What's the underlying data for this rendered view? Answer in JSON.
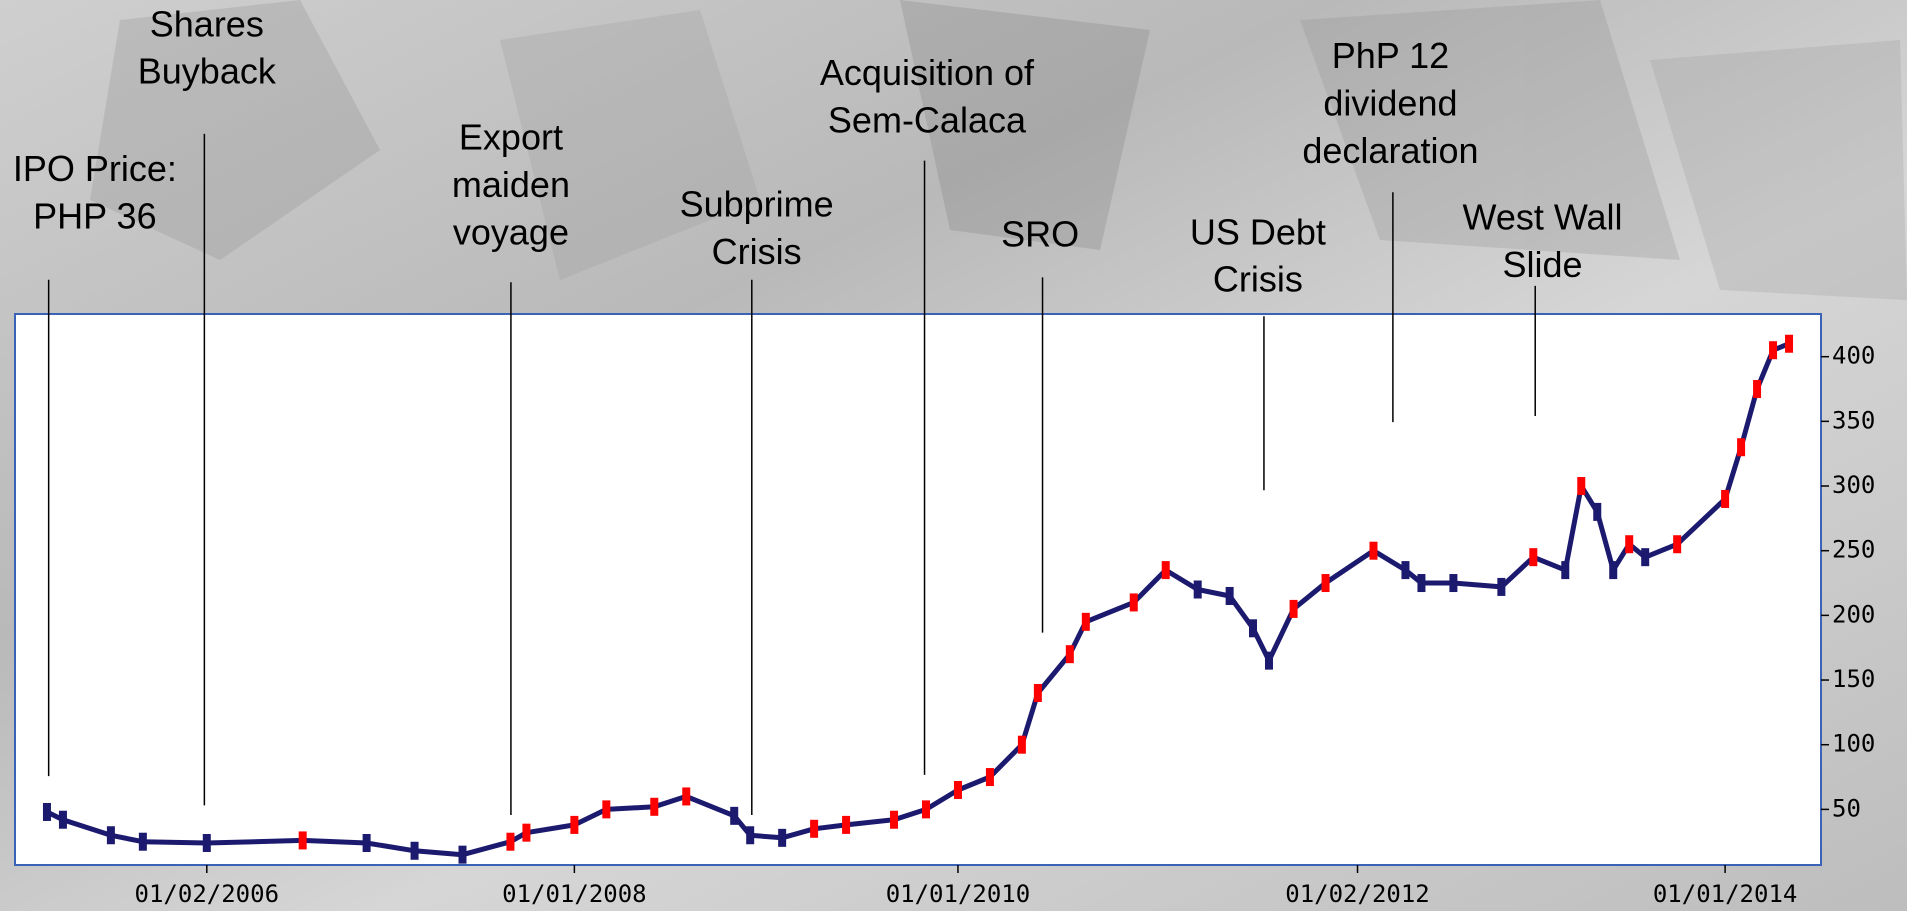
{
  "chart_data": {
    "type": "line",
    "x": [
      "01/04/2005",
      "01/05/2005",
      "01/08/2005",
      "01/10/2005",
      "01/02/2006",
      "01/08/2006",
      "01/12/2006",
      "01/03/2007",
      "01/06/2007",
      "01/09/2007",
      "01/10/2007",
      "01/01/2008",
      "01/03/2008",
      "01/06/2008",
      "01/08/2008",
      "01/11/2008",
      "01/12/2008",
      "01/02/2009",
      "01/04/2009",
      "01/06/2009",
      "01/09/2009",
      "01/11/2009",
      "01/01/2010",
      "01/03/2010",
      "01/05/2010",
      "01/06/2010",
      "01/08/2010",
      "01/09/2010",
      "01/12/2010",
      "01/02/2011",
      "01/04/2011",
      "01/06/2011",
      "15/07/2011",
      "15/08/2011",
      "01/10/2011",
      "01/12/2011",
      "01/03/2012",
      "01/05/2012",
      "01/06/2012",
      "01/08/2012",
      "01/11/2012",
      "01/01/2013",
      "01/03/2013",
      "01/04/2013",
      "01/05/2013",
      "01/06/2013",
      "01/07/2013",
      "01/08/2013",
      "01/10/2013",
      "01/01/2014",
      "01/02/2014",
      "01/03/2014",
      "01/04/2014",
      "01/05/2014"
    ],
    "values": [
      48,
      42,
      30,
      25,
      24,
      26,
      24,
      18,
      15,
      25,
      32,
      38,
      50,
      52,
      60,
      45,
      30,
      28,
      35,
      38,
      42,
      50,
      65,
      75,
      100,
      140,
      170,
      195,
      210,
      235,
      220,
      215,
      190,
      165,
      205,
      225,
      250,
      235,
      225,
      225,
      222,
      245,
      235,
      300,
      280,
      235,
      255,
      245,
      255,
      290,
      330,
      375,
      405,
      410
    ],
    "color": "#1c1a6e",
    "up_color": "#ff0000",
    "xlim": [
      "01/02/2005",
      "01/07/2014"
    ],
    "xticks": [
      "01/02/2006",
      "01/01/2008",
      "01/01/2010",
      "01/02/2012",
      "01/01/2014"
    ],
    "ylim": [
      7,
      433
    ],
    "yticks": [
      50,
      100,
      150,
      200,
      250,
      300,
      350,
      400
    ],
    "y_axis_side": "right",
    "annotations": [
      {
        "lines": [
          "IPO Price:",
          "PHP 36"
        ]
      },
      {
        "lines": [
          "Shares",
          "Buyback"
        ]
      },
      {
        "lines": [
          "Export",
          "maiden",
          "voyage"
        ]
      },
      {
        "lines": [
          "Subprime",
          "Crisis"
        ]
      },
      {
        "lines": [
          "Acquisition of",
          "Sem-Calaca"
        ]
      },
      {
        "lines": [
          "SRO"
        ]
      },
      {
        "lines": [
          "US Debt",
          "Crisis"
        ]
      },
      {
        "lines": [
          "PhP 12",
          "dividend",
          "declaration"
        ]
      },
      {
        "lines": [
          "West Wall",
          "Slide"
        ]
      }
    ]
  }
}
